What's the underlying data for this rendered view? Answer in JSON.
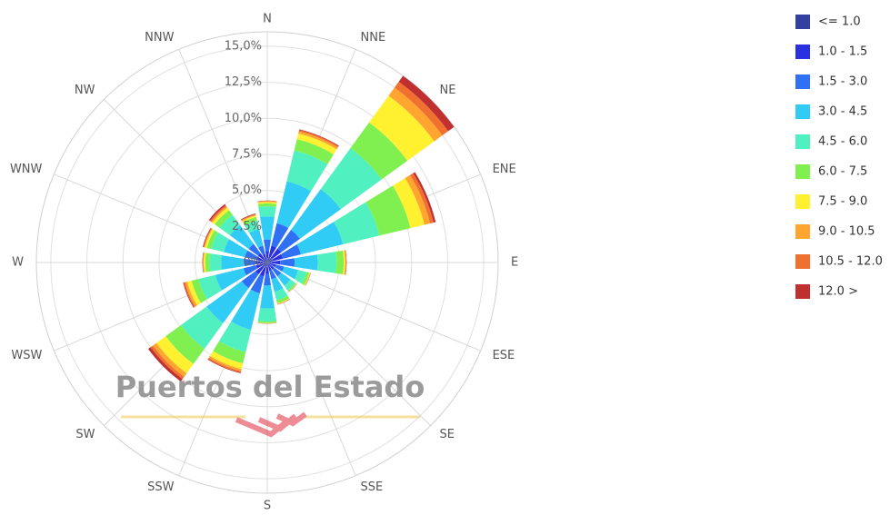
{
  "chart_data": {
    "type": "windrose",
    "categories": [
      "N",
      "NNE",
      "NE",
      "ENE",
      "E",
      "ESE",
      "SE",
      "SSE",
      "S",
      "SSW",
      "SW",
      "WSW",
      "W",
      "WNW",
      "NW",
      "NNW"
    ],
    "ylim": [
      0,
      16
    ],
    "yticks": [
      {
        "value": 0,
        "label": "0%"
      },
      {
        "value": 2.5,
        "label": "2,5%"
      },
      {
        "value": 5,
        "label": "5,0%"
      },
      {
        "value": 7.5,
        "label": "7,5%"
      },
      {
        "value": 10,
        "label": "10,0%"
      },
      {
        "value": 12.5,
        "label": "12,5%"
      },
      {
        "value": 15,
        "label": "15,0%"
      }
    ],
    "grid": true,
    "legend": "right",
    "watermark": "Puertos del Estado",
    "series": [
      {
        "name": "<= 1.0",
        "color": "#3340a0",
        "values": [
          0.3,
          0.4,
          0.4,
          0.4,
          0.3,
          0.2,
          0.2,
          0.2,
          0.3,
          0.4,
          0.4,
          0.3,
          0.3,
          0.3,
          0.3,
          0.2
        ]
      },
      {
        "name": "1.0 - 1.5",
        "color": "#2b30e0",
        "values": [
          0.5,
          0.8,
          0.8,
          0.7,
          0.6,
          0.4,
          0.4,
          0.4,
          0.5,
          0.6,
          0.6,
          0.5,
          0.5,
          0.5,
          0.5,
          0.4
        ]
      },
      {
        "name": "1.5 - 3.0",
        "color": "#2f70f5",
        "values": [
          0.8,
          1.6,
          1.6,
          1.3,
          1.0,
          0.6,
          0.6,
          0.6,
          0.8,
          1.2,
          1.2,
          0.9,
          0.8,
          0.8,
          0.8,
          0.6
        ]
      },
      {
        "name": "3.0 - 4.5",
        "color": "#30ccf5",
        "values": [
          1.6,
          3.0,
          3.5,
          3.0,
          1.6,
          1.0,
          0.8,
          0.9,
          1.6,
          2.6,
          3.0,
          2.0,
          1.6,
          1.5,
          1.6,
          1.2
        ]
      },
      {
        "name": "4.5 - 6.0",
        "color": "#50f0c0",
        "values": [
          0.7,
          2.2,
          3.5,
          2.6,
          1.3,
          0.6,
          0.4,
          0.6,
          0.9,
          1.6,
          2.2,
          1.2,
          0.8,
          0.9,
          0.9,
          0.6
        ]
      },
      {
        "name": "6.0 - 7.5",
        "color": "#80f050",
        "values": [
          0.2,
          0.8,
          2.2,
          2.2,
          0.5,
          0.2,
          0.1,
          0.2,
          0.1,
          0.8,
          1.3,
          0.5,
          0.3,
          0.3,
          0.4,
          0.25
        ]
      },
      {
        "name": "7.5 - 9.0",
        "color": "#fff030",
        "values": [
          0.1,
          0.4,
          2.3,
          1.0,
          0.1,
          0.05,
          0.02,
          0.05,
          0.02,
          0.4,
          0.8,
          0.3,
          0.1,
          0.15,
          0.2,
          0.1
        ]
      },
      {
        "name": "9.0 - 10.5",
        "color": "#ffa530",
        "values": [
          0.05,
          0.15,
          0.7,
          0.4,
          0.05,
          0.02,
          0.01,
          0.02,
          0.01,
          0.15,
          0.3,
          0.15,
          0.05,
          0.05,
          0.1,
          0.05
        ]
      },
      {
        "name": "10.5 - 12.0",
        "color": "#f07030",
        "values": [
          0.03,
          0.1,
          0.5,
          0.25,
          0.03,
          0.02,
          0.01,
          0.02,
          0.01,
          0.1,
          0.2,
          0.1,
          0.03,
          0.05,
          0.1,
          0.05
        ]
      },
      {
        "name": "12.0 >",
        "color": "#c03030",
        "values": [
          0.02,
          0.05,
          0.5,
          0.15,
          0.02,
          0.01,
          0.01,
          0.01,
          0.01,
          0.05,
          0.2,
          0.05,
          0.02,
          0.05,
          0.1,
          0.05
        ]
      }
    ]
  }
}
